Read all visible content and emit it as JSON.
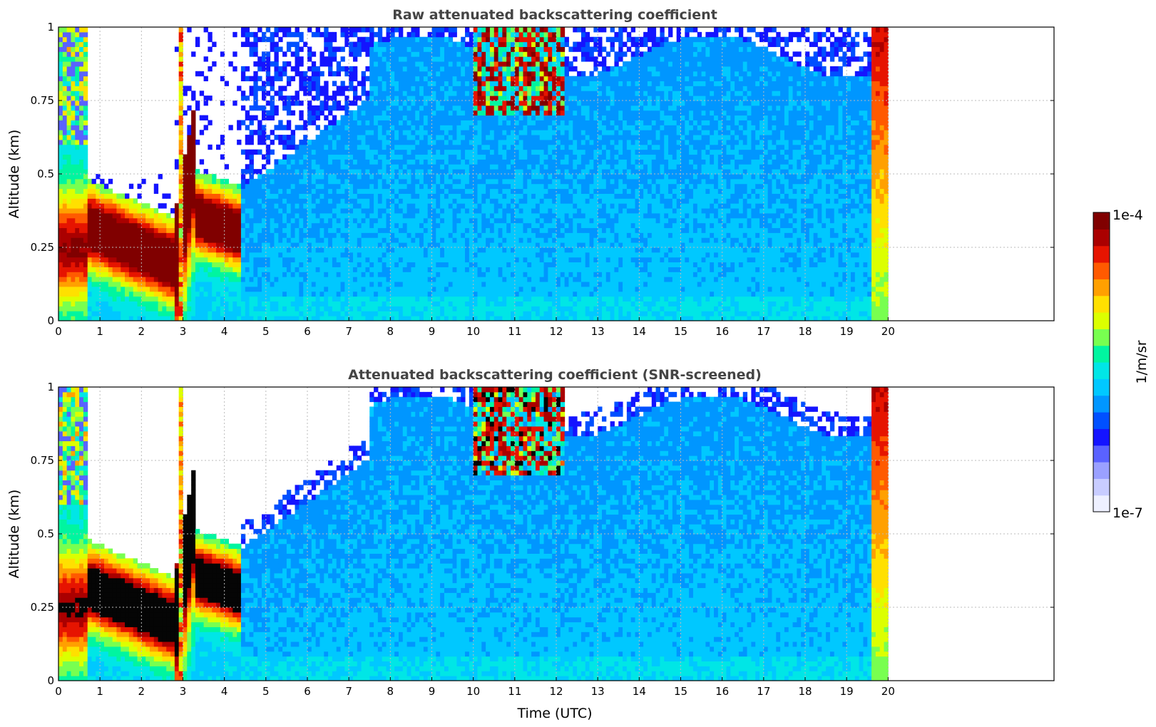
{
  "chart_data": [
    {
      "type": "heatmap",
      "title": "Raw attenuated backscattering coefficient",
      "xlabel": "",
      "ylabel": "Altitude (km)",
      "x_ticks": [
        "0",
        "1",
        "2",
        "3",
        "4",
        "5",
        "6",
        "7",
        "8",
        "9",
        "10",
        "11",
        "12",
        "13",
        "14",
        "15",
        "16",
        "17",
        "18",
        "19",
        "20"
      ],
      "y_ticks": [
        "0",
        "0.25",
        "0.5",
        "0.75",
        "1"
      ],
      "xlim": [
        0,
        24
      ],
      "ylim": [
        0,
        1
      ],
      "data_extent_x": [
        0,
        20
      ],
      "grid": true,
      "features": [
        {
          "desc": "low cloud/aerosol layer",
          "x": [
            0,
            3.2
          ],
          "y": [
            0.05,
            0.45
          ],
          "level": "high"
        },
        {
          "desc": "descending layer",
          "x": [
            3.5,
            4.3
          ],
          "y": [
            0.2,
            0.5
          ],
          "level": "high"
        },
        {
          "desc": "upper clouds",
          "x": [
            10,
            12.2
          ],
          "y": [
            0.7,
            1
          ],
          "level": "high"
        },
        {
          "desc": "boundary layer",
          "x": [
            4.5,
            20
          ],
          "y": [
            0,
            0.8
          ],
          "level": "medium"
        }
      ]
    },
    {
      "type": "heatmap",
      "title": "Attenuated backscattering coefficient (SNR-screened)",
      "xlabel": "Time (UTC)",
      "ylabel": "Altitude (km)",
      "x_ticks": [
        "0",
        "1",
        "2",
        "3",
        "4",
        "5",
        "6",
        "7",
        "8",
        "9",
        "10",
        "11",
        "12",
        "13",
        "14",
        "15",
        "16",
        "17",
        "18",
        "19",
        "20"
      ],
      "y_ticks": [
        "0",
        "0.25",
        "0.5",
        "0.75",
        "1"
      ],
      "xlim": [
        0,
        24
      ],
      "ylim": [
        0,
        1
      ],
      "data_extent_x": [
        0,
        20
      ],
      "grid": true,
      "features": [
        {
          "desc": "saturated low layer",
          "x": [
            0,
            3.2
          ],
          "y": [
            0.05,
            0.42
          ],
          "level": "saturated"
        },
        {
          "desc": "screened boundary layer",
          "x": [
            4.5,
            20
          ],
          "y": [
            0,
            0.95
          ],
          "level": "medium"
        }
      ]
    }
  ],
  "colorbar": {
    "label": "1/m/sr",
    "max_label": "1e-4",
    "min_label": "1e-7",
    "colors": [
      "#eef0ff",
      "#c8ccff",
      "#9aa0ff",
      "#5a62ff",
      "#1414ff",
      "#0050ff",
      "#0096ff",
      "#00c8ff",
      "#00e6e6",
      "#00f5a0",
      "#78ff50",
      "#dcff00",
      "#ffe000",
      "#ffa000",
      "#ff5a00",
      "#e61400",
      "#aa0000",
      "#800000"
    ]
  }
}
